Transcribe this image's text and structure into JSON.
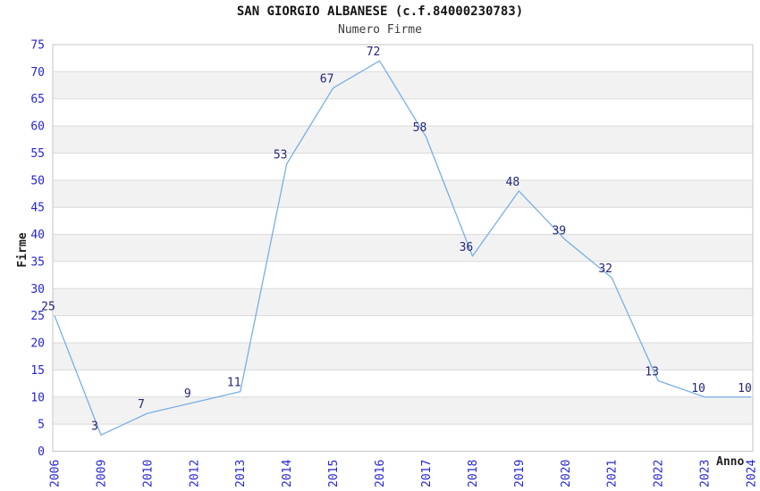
{
  "chart_data": {
    "type": "line",
    "title": "SAN GIORGIO ALBANESE (c.f.84000230783)",
    "subtitle": "Numero Firme",
    "xlabel": "Anno",
    "ylabel": "Firme",
    "categories": [
      "2006",
      "2009",
      "2010",
      "2012",
      "2013",
      "2014",
      "2015",
      "2016",
      "2017",
      "2018",
      "2019",
      "2020",
      "2021",
      "2022",
      "2023",
      "2024"
    ],
    "values": [
      25,
      3,
      7,
      9,
      11,
      53,
      67,
      72,
      58,
      36,
      48,
      39,
      32,
      13,
      10,
      10
    ],
    "ylim": [
      0,
      75
    ],
    "ytick_step": 5,
    "grid": "horizontal gridlines every 5 units",
    "banding": "alternating light-gray horizontal bands every 5 units (5-10, 15-20, 25-30, 35-40, 45-50, 55-60, 65-70)",
    "legend": "none",
    "point_labels_shown": true,
    "x_tick_rotation_deg": 90,
    "colors": {
      "line": "#79afe5",
      "point_label": "#252579",
      "tick_label": "#2525d5",
      "band": "#f2f2f2",
      "gridline": "#dadada",
      "plot_border": "#c6c6c6",
      "title": "#141414",
      "subtitle": "#3a3a3a",
      "axis_title": "#1f1f1f",
      "background": "#ffffff"
    }
  }
}
